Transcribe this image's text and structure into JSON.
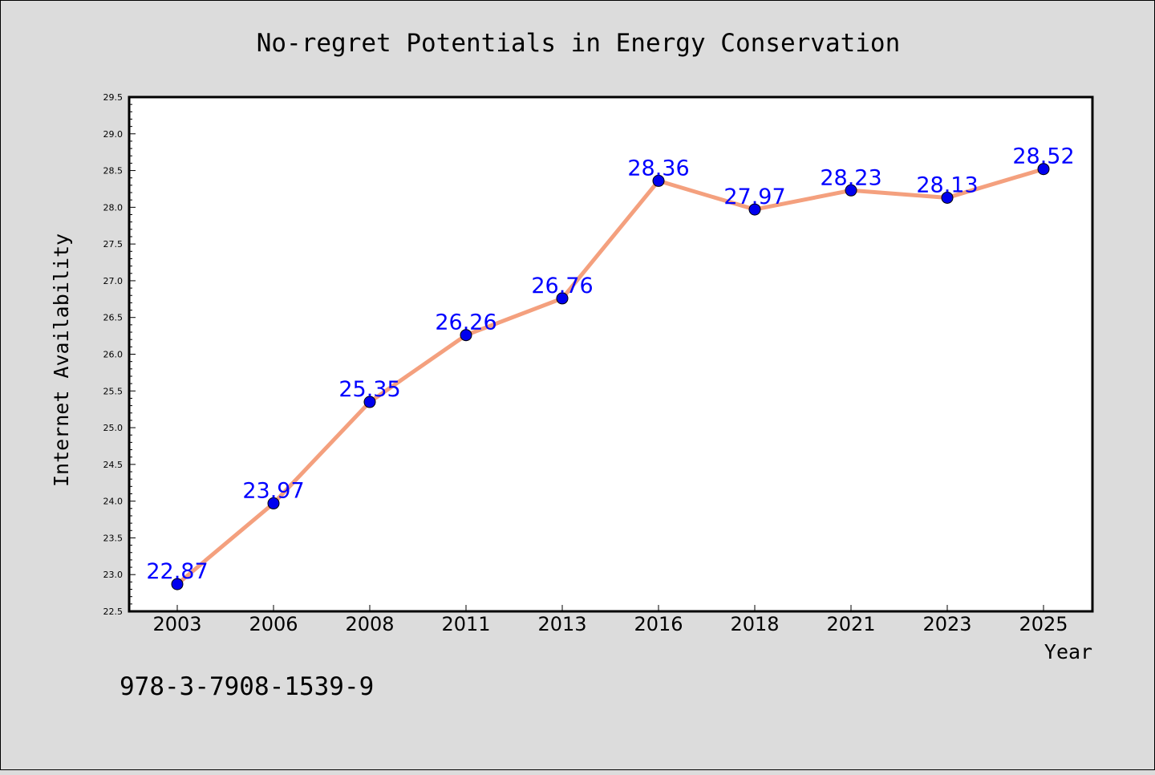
{
  "chart_data": {
    "type": "line",
    "title": "No-regret Potentials in Energy Conservation",
    "xlabel": "Year",
    "ylabel": "Internet Availability",
    "categories": [
      "2003",
      "2006",
      "2008",
      "2011",
      "2013",
      "2016",
      "2018",
      "2021",
      "2023",
      "2025"
    ],
    "series": [
      {
        "values": [
          22.87,
          23.97,
          25.35,
          26.26,
          26.76,
          28.36,
          27.97,
          28.23,
          28.13,
          28.52
        ],
        "data_labels": [
          "22.87",
          "23.97",
          "25.35",
          "26.26",
          "26.76",
          "28.36",
          "27.97",
          "28.23",
          "28.13",
          "28.52"
        ],
        "line_color": "#f4a07e",
        "marker_color": "#0000ee",
        "label_color": "#0000ff"
      }
    ],
    "ylim": [
      22.5,
      29.5
    ],
    "yticks": [
      "22.5",
      "23.0",
      "23.5",
      "24.0",
      "24.5",
      "25.0",
      "25.5",
      "26.0",
      "26.5",
      "27.0",
      "27.5",
      "28.0",
      "28.5",
      "29.0",
      "29.5"
    ],
    "grid": false,
    "legend": "none"
  },
  "footer_text": "978-3-7908-1539-9",
  "colors": {
    "background": "#dcdcdc",
    "plot_background": "#ffffff"
  }
}
